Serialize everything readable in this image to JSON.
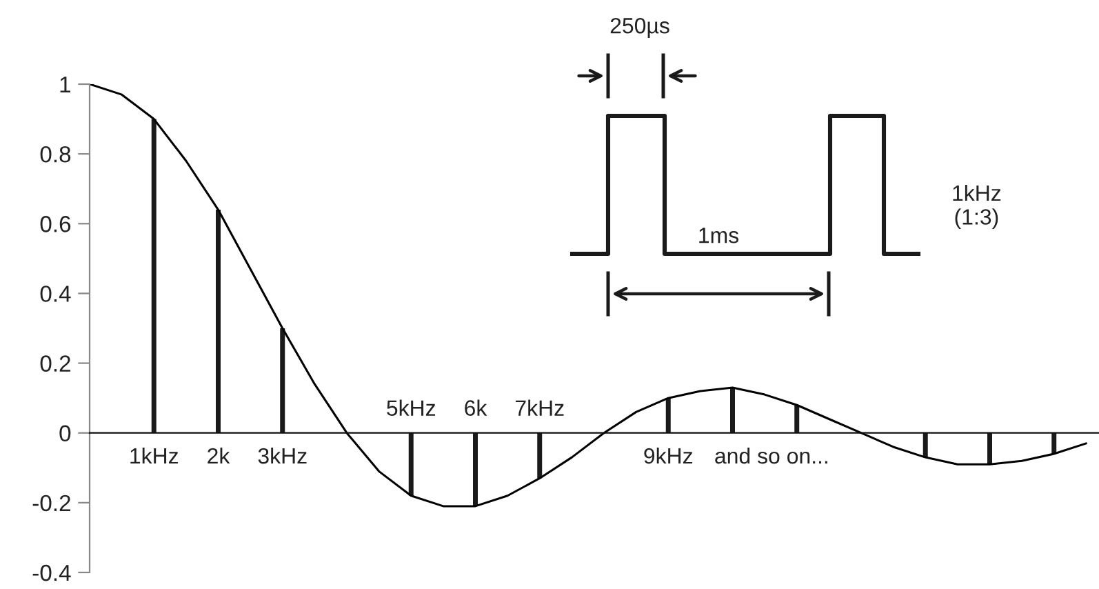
{
  "chart_data": {
    "type": "bar",
    "ylim": [
      -0.4,
      1
    ],
    "yticks": [
      -0.4,
      -0.2,
      0,
      0.2,
      0.4,
      0.6,
      0.8,
      1
    ],
    "grid": false,
    "legend": false,
    "categories": [
      null,
      null,
      "1kHz",
      null,
      "2k",
      null,
      "3kHz",
      null,
      null,
      null,
      "5kHz",
      null,
      "6k",
      null,
      "7kHz",
      null,
      null,
      null,
      "9kHz",
      null,
      null,
      null,
      null,
      null,
      null,
      null,
      null,
      null,
      null,
      null,
      null,
      null
    ],
    "series": [
      {
        "type": "line",
        "color": "#000000",
        "values": [
          1,
          0.97,
          0.9,
          0.78,
          0.64,
          0.47,
          0.3,
          0.14,
          0,
          -0.11,
          -0.18,
          -0.21,
          -0.21,
          -0.18,
          -0.13,
          -0.07,
          0,
          0.06,
          0.1,
          0.12,
          0.13,
          0.11,
          0.08,
          0.04,
          0,
          -0.04,
          -0.07,
          -0.09,
          -0.09,
          -0.08,
          -0.06,
          -0.03
        ]
      },
      {
        "color": "#1a1a1a",
        "values": [
          null,
          null,
          0.9,
          null,
          0.64,
          null,
          0.3,
          null,
          null,
          null,
          -0.18,
          null,
          -0.21,
          null,
          -0.13,
          null,
          null,
          null,
          0.1,
          null,
          0.13,
          null,
          0.08,
          null,
          null,
          null,
          -0.07,
          null,
          -0.09,
          null,
          -0.06,
          null
        ]
      }
    ],
    "annotations": [
      "and so on...",
      "250µs",
      "1ms",
      "1kHz\n(1:3)"
    ]
  }
}
